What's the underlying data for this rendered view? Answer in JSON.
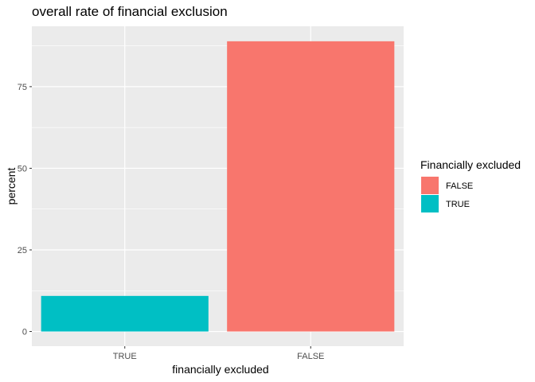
{
  "chart_data": {
    "type": "bar",
    "title": "overall rate of financial exclusion",
    "xlabel": "financially excluded",
    "ylabel": "percent",
    "categories": [
      "TRUE",
      "FALSE"
    ],
    "values": [
      10.9,
      88.9
    ],
    "bar_colors": [
      "#00BFC4",
      "#F8766D"
    ],
    "ylim": [
      -4.5,
      93.5
    ],
    "yticks": [
      0,
      25,
      50,
      75
    ],
    "grid": true,
    "panel_background": "#EBEBEB",
    "grid_color": "#FFFFFF",
    "legend": {
      "title": "Financially excluded",
      "placement": "right",
      "items": [
        {
          "label": "FALSE",
          "color": "#F8766D"
        },
        {
          "label": "TRUE",
          "color": "#00BFC4"
        }
      ]
    }
  }
}
